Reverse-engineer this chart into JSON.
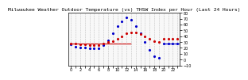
{
  "title": "Milwaukee Weather Outdoor Temperature (vs) THSW Index per Hour (Last 24 Hours)",
  "temp_color": "#cc0000",
  "thsw_color": "#0000cc",
  "bg_color": "#ffffff",
  "plot_bg": "#f8f8f8",
  "ylim": [
    -10,
    80
  ],
  "yticks": [
    -10,
    0,
    10,
    20,
    30,
    40,
    50,
    60,
    70,
    80
  ],
  "grid_color": "#aaaaaa",
  "marker_size": 2.5,
  "title_fontsize": 4.5,
  "tick_fontsize": 3.5,
  "temp_hline_y": 27,
  "temp_hline_xmin": 0,
  "temp_hline_xmax": 13,
  "thsw_hline_y": 28,
  "thsw_hline_xmin": 20,
  "thsw_hline_xmax": 23.5,
  "temp_dots_x": [
    0,
    1,
    2,
    3,
    4,
    5,
    6,
    7,
    8,
    9,
    10,
    11,
    12,
    13,
    14,
    15,
    16,
    17,
    18,
    19,
    20,
    21,
    22,
    23
  ],
  "temp_dots_y": [
    28,
    27,
    26,
    26,
    25,
    25,
    25,
    28,
    30,
    32,
    36,
    40,
    45,
    47,
    46,
    44,
    40,
    36,
    32,
    30,
    35,
    36,
    35,
    35
  ],
  "thsw_dots_x": [
    0,
    1,
    2,
    3,
    4,
    5,
    6,
    7,
    8,
    9,
    10,
    11,
    12,
    13,
    14,
    15,
    16,
    17,
    18,
    19,
    20,
    21,
    22,
    23
  ],
  "thsw_dots_y": [
    26,
    22,
    21,
    20,
    19,
    19,
    19,
    25,
    33,
    45,
    58,
    65,
    72,
    68,
    58,
    45,
    30,
    16,
    5,
    3,
    28,
    28,
    28,
    28
  ],
  "xlim": [
    -0.5,
    23.5
  ],
  "xticks": [
    0,
    1,
    2,
    3,
    4,
    5,
    6,
    7,
    8,
    9,
    10,
    11,
    12,
    13,
    14,
    15,
    16,
    17,
    18,
    19,
    20,
    21,
    22,
    23
  ]
}
